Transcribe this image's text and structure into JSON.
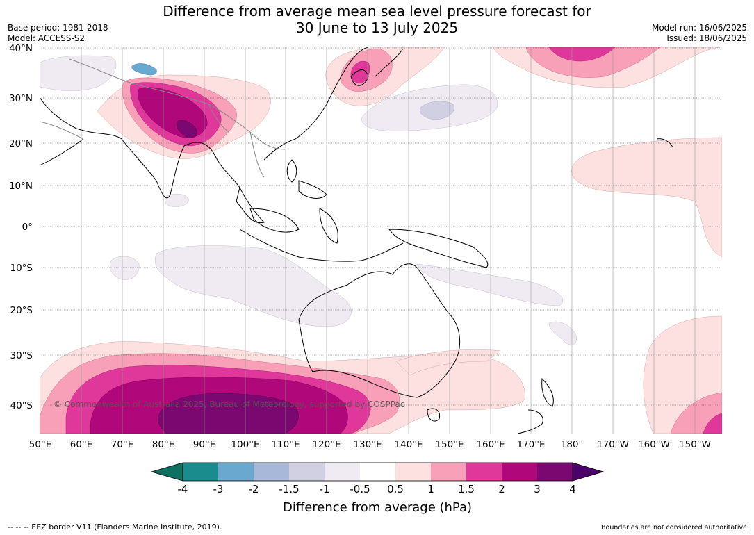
{
  "title_line1": "Difference from average mean sea level pressure forecast for",
  "title_line2": "30 June to 13 July 2025",
  "meta_left": [
    "Base period: 1981-2018",
    "Model: ACCESS-S2"
  ],
  "meta_right": [
    "Model run: 16/06/2025",
    "Issued: 18/06/2025"
  ],
  "map": {
    "lat_labels": [
      "40°N",
      "30°N",
      "20°N",
      "10°N",
      "0°",
      "10°S",
      "20°S",
      "30°S",
      "40°S"
    ],
    "lon_labels": [
      "50°E",
      "60°E",
      "70°E",
      "80°E",
      "90°E",
      "100°E",
      "110°E",
      "120°E",
      "130°E",
      "140°E",
      "150°E",
      "160°E",
      "170°E",
      "180°",
      "170°W",
      "160°W",
      "150°W"
    ],
    "copyright": "© Commonwealth of Australia 2025, Bureau of Meteorology, supported by COSPPac"
  },
  "colorbar": {
    "ticks": [
      "-4",
      "-3",
      "-2",
      "-1.5",
      "-1",
      "-0.5",
      "0.5",
      "1",
      "1.5",
      "2",
      "3",
      "4"
    ],
    "colors": [
      "#1b8c8e",
      "#6aa8d0",
      "#a8b8d8",
      "#d0d0e2",
      "#f0eaf2",
      "#ffffff",
      "#fde0e0",
      "#f7a0b8",
      "#e0389a",
      "#b0087a",
      "#7a0870"
    ],
    "under_color": "#0e7060",
    "over_color": "#4c006a",
    "label": "Difference from average (hPa)"
  },
  "footer_left": "--  --  -- EEZ border V11 (Flanders Marine Institute, 2019).",
  "footer_right": "Boundaries are not considered authoritative"
}
